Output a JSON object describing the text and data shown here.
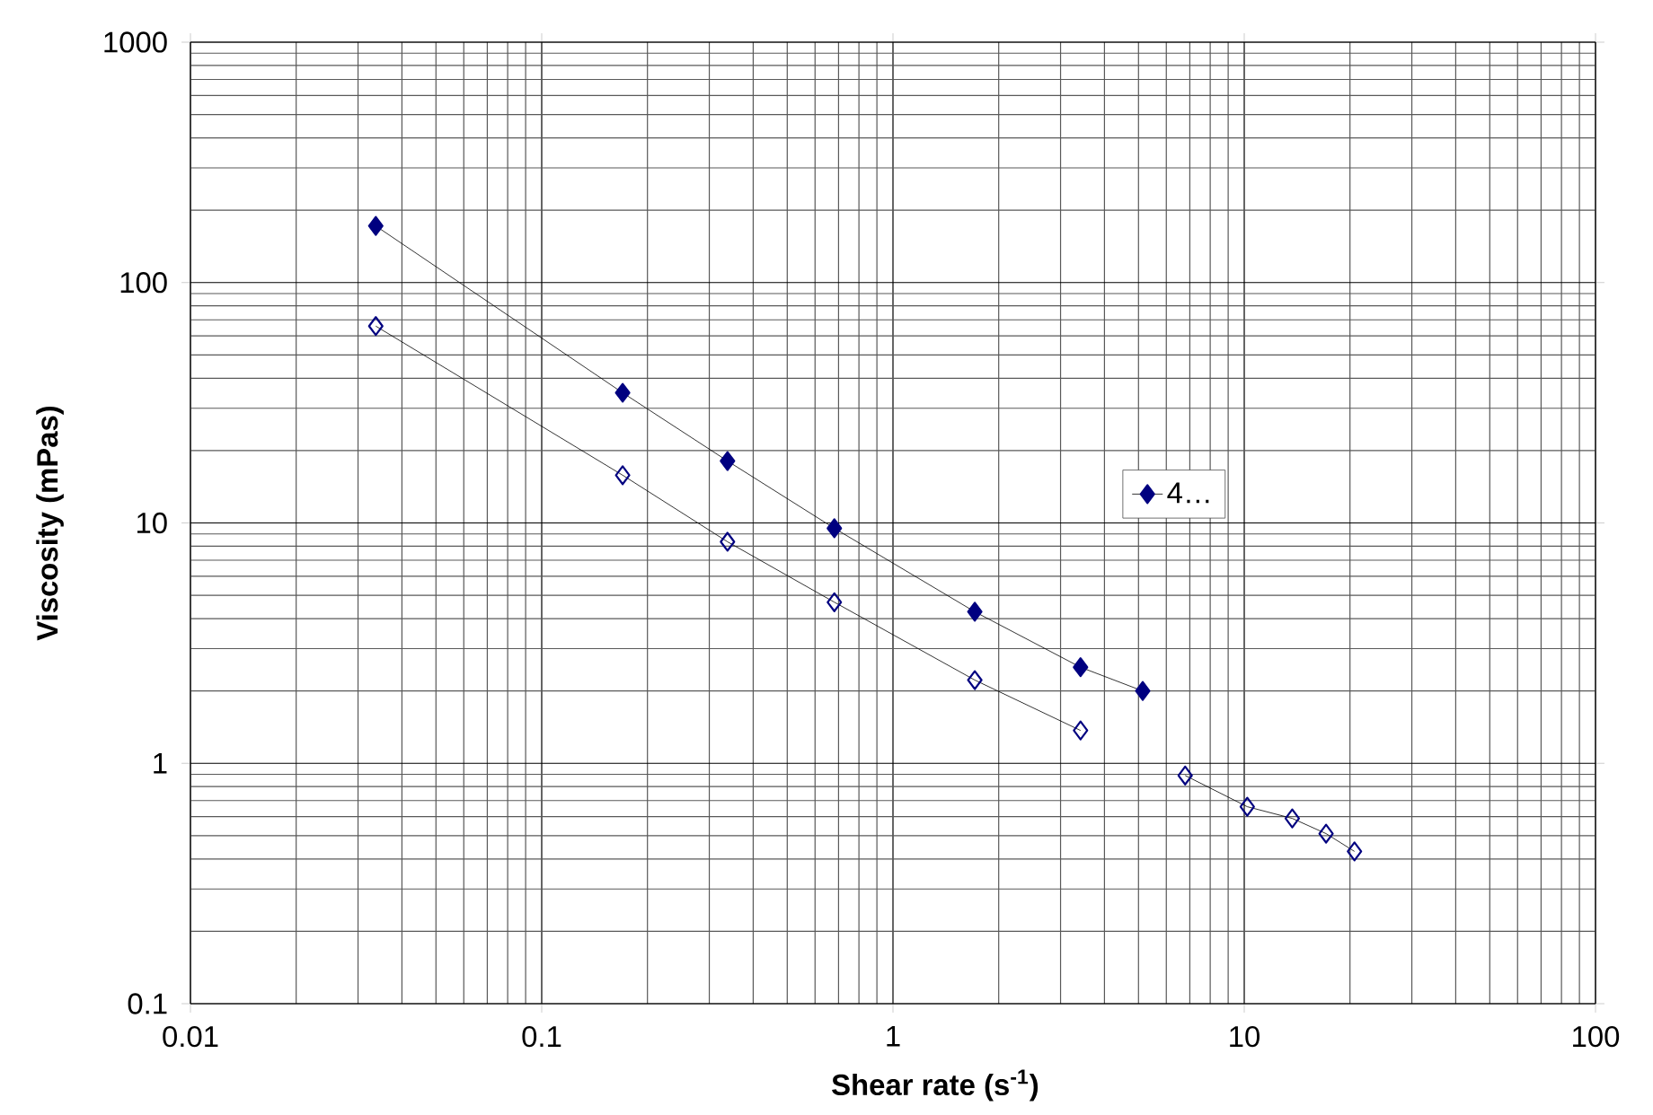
{
  "chart_data": {
    "type": "line",
    "xlabel": "Shear rate (s$^{-1}$)",
    "ylabel": "Viscosity (mPas)",
    "log": "xy",
    "xlim": [
      0.01,
      100
    ],
    "ylim": [
      0.1,
      1000
    ],
    "xticks": [
      0.01,
      0.1,
      1,
      10,
      100
    ],
    "yticks": [
      0.1,
      1,
      10,
      100,
      1000
    ],
    "grid": true,
    "legend": "right",
    "marker": "diamond",
    "series": [
      {
        "name": "4…",
        "color": "#000080",
        "x": [
          0.0337,
          0.17,
          0.338,
          0.681,
          1.71,
          3.42,
          5.14
        ],
        "values": [
          172,
          34.8,
          18.1,
          9.5,
          4.27,
          2.51,
          2.0
        ]
      },
      {
        "color": "#000080",
        "x": [
          0.0337,
          0.17,
          0.338,
          0.681,
          1.71,
          3.42
        ],
        "values": [
          65.9,
          15.8,
          8.35,
          4.68,
          2.22,
          1.37
        ]
      },
      {
        "color": "#000080",
        "x": [
          6.79,
          10.2,
          13.7,
          17.1,
          20.6
        ],
        "values": [
          0.89,
          0.66,
          0.59,
          0.51,
          0.43
        ]
      }
    ]
  }
}
